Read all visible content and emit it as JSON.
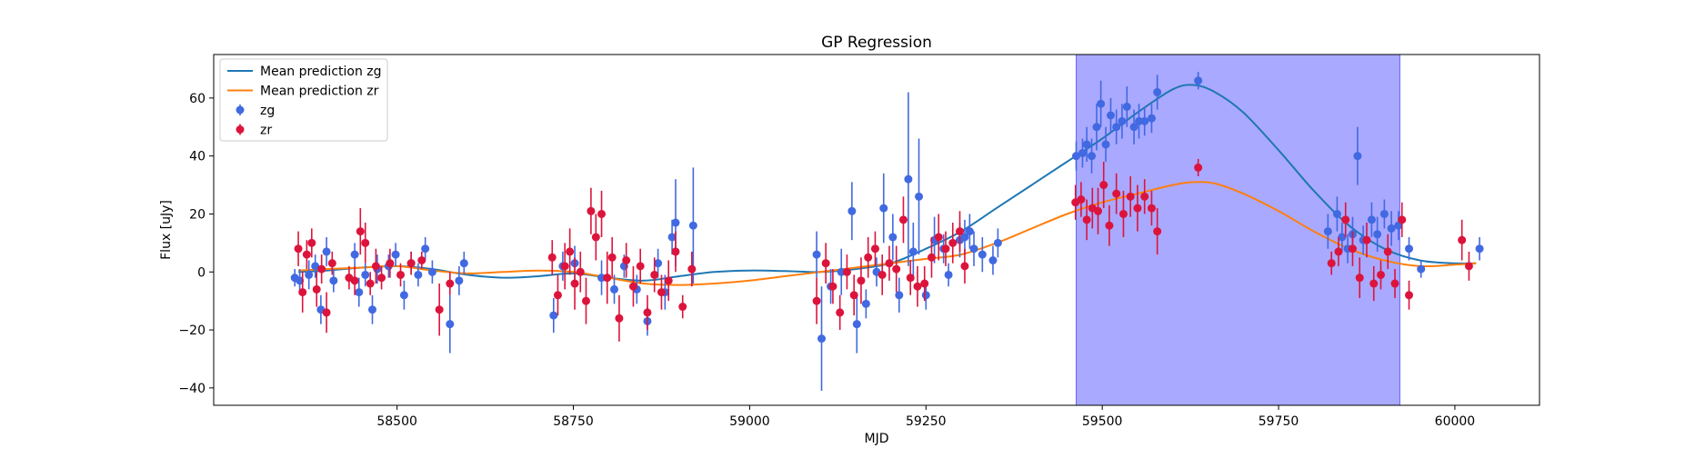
{
  "chart_data": {
    "type": "scatter",
    "title": "GP Regression",
    "xlabel": "MJD",
    "ylabel": "Flux [uJy]",
    "xlim": [
      58240,
      60120
    ],
    "ylim": [
      -46,
      75
    ],
    "xticks": [
      58500,
      58750,
      59000,
      59250,
      59500,
      59750,
      60000
    ],
    "yticks": [
      -40,
      -20,
      0,
      20,
      40,
      60
    ],
    "grid": false,
    "legend_position": "top-left",
    "highlight_span": {
      "x_start": 59463,
      "x_end": 59922,
      "color": "#8080ff"
    },
    "legend": [
      {
        "label": "Mean prediction zg",
        "kind": "line",
        "color": "#1f77b4"
      },
      {
        "label": "Mean prediction zr",
        "kind": "line",
        "color": "#ff7f0e"
      },
      {
        "label": "zg",
        "kind": "marker",
        "color": "#4169e1"
      },
      {
        "label": "zr",
        "kind": "marker",
        "color": "#dc143c"
      }
    ],
    "lines": [
      {
        "name": "Mean prediction zg",
        "color": "#1f77b4",
        "x": [
          58360,
          58400,
          58450,
          58500,
          58550,
          58600,
          58650,
          58700,
          58750,
          58800,
          58850,
          58900,
          58950,
          59000,
          59050,
          59100,
          59150,
          59200,
          59250,
          59300,
          59350,
          59400,
          59450,
          59500,
          59550,
          59600,
          59630,
          59660,
          59700,
          59750,
          59800,
          59850,
          59900,
          59950,
          60000,
          60030
        ],
        "y": [
          0,
          0.5,
          1.5,
          2,
          1,
          -1,
          -2,
          -1.5,
          -0.5,
          -2,
          -3,
          -1.5,
          0,
          0.5,
          0.3,
          0,
          1,
          3,
          8,
          14,
          22,
          30,
          38,
          46,
          55,
          63,
          64.5,
          62,
          55,
          42,
          28,
          16,
          8,
          4,
          3,
          3
        ]
      },
      {
        "name": "Mean prediction zr",
        "color": "#ff7f0e",
        "x": [
          58360,
          58400,
          58450,
          58500,
          58550,
          58600,
          58650,
          58700,
          58750,
          58800,
          58850,
          58900,
          58950,
          59000,
          59050,
          59100,
          59150,
          59200,
          59250,
          59300,
          59350,
          59400,
          59450,
          59500,
          59550,
          59600,
          59630,
          59660,
          59700,
          59750,
          59800,
          59850,
          59900,
          59950,
          60000,
          60030
        ],
        "y": [
          0.5,
          1,
          1.5,
          2,
          0.5,
          -0.5,
          0,
          0.5,
          0,
          -2,
          -4,
          -4.5,
          -4,
          -3,
          -1.5,
          0,
          1.5,
          3,
          4.5,
          6,
          10,
          15,
          20,
          24,
          27,
          30,
          31,
          30.5,
          27,
          21,
          14,
          8,
          4,
          2,
          2.5,
          3
        ]
      }
    ],
    "series": [
      {
        "name": "zg",
        "color": "#4169e1",
        "points": [
          [
            58355,
            -2,
            3
          ],
          [
            58362,
            -3,
            4
          ],
          [
            58375,
            -1,
            5
          ],
          [
            58384,
            2,
            4
          ],
          [
            58392,
            -13,
            5
          ],
          [
            58400,
            7,
            5
          ],
          [
            58410,
            -3,
            4
          ],
          [
            58440,
            6,
            4
          ],
          [
            58446,
            -7,
            5
          ],
          [
            58455,
            -1,
            4
          ],
          [
            58465,
            -13,
            5
          ],
          [
            58472,
            1,
            5
          ],
          [
            58488,
            2,
            4
          ],
          [
            58498,
            6,
            4
          ],
          [
            58510,
            -8,
            5
          ],
          [
            58520,
            3,
            4
          ],
          [
            58530,
            -1,
            4
          ],
          [
            58540,
            8,
            4
          ],
          [
            58550,
            0,
            4
          ],
          [
            58575,
            -18,
            10
          ],
          [
            58588,
            -3,
            5
          ],
          [
            58595,
            3,
            4
          ],
          [
            58722,
            -15,
            6
          ],
          [
            58735,
            2,
            5
          ],
          [
            58752,
            3,
            6
          ],
          [
            58790,
            -2,
            6
          ],
          [
            58808,
            -6,
            5
          ],
          [
            58822,
            2,
            4
          ],
          [
            58840,
            -6,
            5
          ],
          [
            58855,
            -17,
            5
          ],
          [
            58870,
            3,
            5
          ],
          [
            58880,
            -7,
            6
          ],
          [
            58890,
            12,
            6
          ],
          [
            58895,
            17,
            15
          ],
          [
            58920,
            16,
            20
          ],
          [
            59095,
            6,
            8
          ],
          [
            59102,
            -23,
            18
          ],
          [
            59115,
            -5,
            6
          ],
          [
            59130,
            0,
            8
          ],
          [
            59145,
            21,
            10
          ],
          [
            59152,
            -18,
            10
          ],
          [
            59165,
            -11,
            5
          ],
          [
            59180,
            0,
            5
          ],
          [
            59190,
            22,
            12
          ],
          [
            59203,
            12,
            8
          ],
          [
            59212,
            -8,
            6
          ],
          [
            59225,
            32,
            30
          ],
          [
            59232,
            7,
            10
          ],
          [
            59240,
            26,
            20
          ],
          [
            59250,
            -8,
            5
          ],
          [
            59262,
            11,
            8
          ],
          [
            59275,
            8,
            5
          ],
          [
            59282,
            -1,
            4
          ],
          [
            59298,
            11,
            6
          ],
          [
            59305,
            12,
            6
          ],
          [
            59312,
            14,
            6
          ],
          [
            59318,
            8,
            6
          ],
          [
            59330,
            6,
            6
          ],
          [
            59345,
            4,
            5
          ],
          [
            59352,
            10,
            5
          ],
          [
            59463,
            40,
            5
          ],
          [
            59472,
            41,
            5
          ],
          [
            59478,
            44,
            6
          ],
          [
            59485,
            40,
            6
          ],
          [
            59492,
            50,
            8
          ],
          [
            59498,
            58,
            8
          ],
          [
            59505,
            44,
            6
          ],
          [
            59512,
            54,
            6
          ],
          [
            59520,
            50,
            6
          ],
          [
            59528,
            52,
            6
          ],
          [
            59535,
            57,
            7
          ],
          [
            59545,
            50,
            6
          ],
          [
            59552,
            52,
            6
          ],
          [
            59560,
            52,
            5
          ],
          [
            59570,
            53,
            5
          ],
          [
            59578,
            62,
            6
          ],
          [
            59636,
            66,
            3
          ],
          [
            59820,
            14,
            6
          ],
          [
            59833,
            20,
            6
          ],
          [
            59840,
            12,
            5
          ],
          [
            59848,
            8,
            5
          ],
          [
            59855,
            13,
            6
          ],
          [
            59862,
            40,
            10
          ],
          [
            59870,
            11,
            5
          ],
          [
            59882,
            18,
            6
          ],
          [
            59890,
            13,
            6
          ],
          [
            59900,
            20,
            5
          ],
          [
            59910,
            15,
            6
          ],
          [
            59920,
            16,
            5
          ],
          [
            59935,
            8,
            4
          ],
          [
            59952,
            1,
            3
          ],
          [
            60035,
            8,
            4
          ]
        ]
      },
      {
        "name": "zr",
        "color": "#dc143c",
        "points": [
          [
            58360,
            8,
            6
          ],
          [
            58366,
            -7,
            7
          ],
          [
            58372,
            6,
            5
          ],
          [
            58379,
            10,
            5
          ],
          [
            58386,
            -6,
            6
          ],
          [
            58393,
            1,
            5
          ],
          [
            58400,
            -14,
            7
          ],
          [
            58408,
            3,
            4
          ],
          [
            58432,
            -2,
            4
          ],
          [
            58440,
            -3,
            5
          ],
          [
            58448,
            14,
            8
          ],
          [
            58455,
            10,
            7
          ],
          [
            58462,
            -4,
            4
          ],
          [
            58470,
            2,
            6
          ],
          [
            58478,
            -2,
            4
          ],
          [
            58490,
            3,
            5
          ],
          [
            58505,
            -1,
            4
          ],
          [
            58520,
            3,
            4
          ],
          [
            58535,
            4,
            3
          ],
          [
            58560,
            -13,
            9
          ],
          [
            58575,
            -4,
            4
          ],
          [
            58720,
            5,
            6
          ],
          [
            58728,
            -8,
            7
          ],
          [
            58738,
            2,
            8
          ],
          [
            58745,
            7,
            8
          ],
          [
            58752,
            -4,
            9
          ],
          [
            58760,
            0,
            7
          ],
          [
            58768,
            -10,
            8
          ],
          [
            58775,
            21,
            8
          ],
          [
            58782,
            12,
            8
          ],
          [
            58790,
            20,
            8
          ],
          [
            58798,
            -2,
            9
          ],
          [
            58805,
            5,
            7
          ],
          [
            58815,
            -16,
            8
          ],
          [
            58825,
            4,
            6
          ],
          [
            58835,
            -5,
            7
          ],
          [
            58845,
            2,
            6
          ],
          [
            58855,
            -14,
            6
          ],
          [
            58865,
            -1,
            6
          ],
          [
            58875,
            -7,
            6
          ],
          [
            58885,
            -3,
            7
          ],
          [
            58895,
            7,
            7
          ],
          [
            58905,
            -12,
            4
          ],
          [
            58918,
            1,
            6
          ],
          [
            59095,
            -10,
            8
          ],
          [
            59108,
            3,
            7
          ],
          [
            59118,
            -5,
            6
          ],
          [
            59128,
            -14,
            6
          ],
          [
            59138,
            0,
            6
          ],
          [
            59148,
            -8,
            7
          ],
          [
            59158,
            -3,
            8
          ],
          [
            59168,
            5,
            7
          ],
          [
            59178,
            8,
            6
          ],
          [
            59188,
            -1,
            7
          ],
          [
            59198,
            3,
            6
          ],
          [
            59208,
            1,
            8
          ],
          [
            59218,
            18,
            8
          ],
          [
            59228,
            -2,
            6
          ],
          [
            59238,
            -5,
            7
          ],
          [
            59248,
            -4,
            6
          ],
          [
            59258,
            5,
            7
          ],
          [
            59268,
            12,
            8
          ],
          [
            59278,
            8,
            6
          ],
          [
            59288,
            10,
            7
          ],
          [
            59298,
            14,
            7
          ],
          [
            59305,
            2,
            6
          ],
          [
            59462,
            24,
            6
          ],
          [
            59470,
            25,
            6
          ],
          [
            59478,
            18,
            7
          ],
          [
            59486,
            22,
            7
          ],
          [
            59494,
            21,
            8
          ],
          [
            59502,
            30,
            8
          ],
          [
            59510,
            16,
            7
          ],
          [
            59520,
            27,
            7
          ],
          [
            59530,
            20,
            8
          ],
          [
            59540,
            26,
            7
          ],
          [
            59550,
            22,
            8
          ],
          [
            59560,
            26,
            6
          ],
          [
            59570,
            22,
            6
          ],
          [
            59578,
            14,
            8
          ],
          [
            59636,
            36,
            3
          ],
          [
            59825,
            3,
            4
          ],
          [
            59835,
            7,
            5
          ],
          [
            59845,
            18,
            6
          ],
          [
            59855,
            8,
            6
          ],
          [
            59865,
            -2,
            7
          ],
          [
            59875,
            11,
            6
          ],
          [
            59885,
            -4,
            6
          ],
          [
            59895,
            -1,
            5
          ],
          [
            59905,
            7,
            6
          ],
          [
            59915,
            -4,
            5
          ],
          [
            59925,
            18,
            6
          ],
          [
            59935,
            -8,
            5
          ],
          [
            60010,
            11,
            7
          ],
          [
            60020,
            2,
            5
          ]
        ]
      }
    ]
  }
}
